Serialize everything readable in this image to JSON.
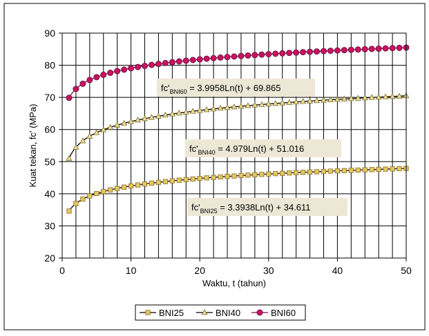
{
  "chart_data": {
    "type": "line",
    "xlabel": "Waktu, t  (tahun)",
    "ylabel": "Kuat tekan, fc'  (MPa)",
    "xlim": [
      0,
      50
    ],
    "ylim": [
      20,
      90
    ],
    "x_ticks": [
      0,
      10,
      20,
      30,
      40,
      50
    ],
    "y_ticks": [
      20,
      30,
      40,
      50,
      60,
      70,
      80,
      90
    ],
    "x_minor_step": 2,
    "grid": true,
    "x": [
      1,
      50
    ],
    "series": [
      {
        "name": "BNI25",
        "marker": "square",
        "line_color": "#000000",
        "marker_fill": "#e3c663",
        "marker_edge": "#8a6d1c",
        "coef_a": 3.3938,
        "coef_b": 34.611,
        "values_at_x": [
          34.6,
          47.9
        ]
      },
      {
        "name": "BNI40",
        "marker": "triangle",
        "line_color": "#000000",
        "marker_fill": "#eedc96",
        "marker_edge": "#7a6a2a",
        "coef_a": 4.979,
        "coef_b": 51.016,
        "values_at_x": [
          51.0,
          70.5
        ]
      },
      {
        "name": "BNI60",
        "marker": "circle",
        "line_color": "#7a0f4a",
        "marker_fill": "#c8145f",
        "marker_edge": "#5e0a36",
        "coef_a": 3.9958,
        "coef_b": 69.865,
        "values_at_x": [
          69.9,
          85.5
        ]
      }
    ],
    "annotations": [
      {
        "series": "BNI60",
        "prefix": "fc'",
        "sub": "BNI60",
        "text": " = 3.9958Ln(t) + 69.865"
      },
      {
        "series": "BNI40",
        "prefix": "fc'",
        "sub": "BNI40",
        "text": " = 4.979Ln(t) + 51.016"
      },
      {
        "series": "BNI25",
        "prefix": "fc'",
        "sub": "BNI25",
        "text": " = 3.3938Ln(t) + 34.611"
      }
    ],
    "legend_position": "bottom"
  },
  "colors": {
    "plot_background": "#ffffff",
    "grid": "#000000",
    "annotation_box": "#ede7d6",
    "frame": "#000000"
  }
}
